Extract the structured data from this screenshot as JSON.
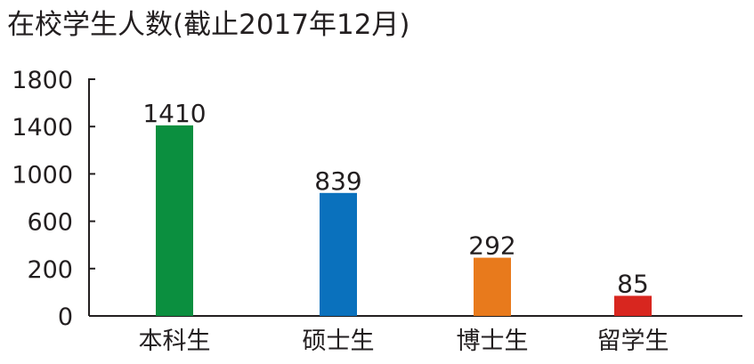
{
  "chart_data": {
    "type": "bar",
    "title": "在校学生人数(截止2017年12月)",
    "categories": [
      "本科生",
      "硕士生",
      "博士生",
      "留学生"
    ],
    "values": [
      1410,
      839,
      292,
      85
    ],
    "value_labels": [
      "1410",
      "839",
      "292",
      "85"
    ],
    "bar_colors": [
      "#0b8f3f",
      "#0a71bd",
      "#e87a1c",
      "#d8261f"
    ],
    "yticks": [
      0,
      200,
      600,
      1000,
      1400,
      1800
    ],
    "ytick_labels": [
      "0",
      "200",
      "600",
      "1000",
      "1400",
      "1800"
    ],
    "ylim": [
      0,
      1800
    ],
    "xlabel": "",
    "ylabel": "",
    "grid": false,
    "legend": "none",
    "scale_note": "axis ticks are placed at equal intervals although their values are not evenly spaced"
  }
}
